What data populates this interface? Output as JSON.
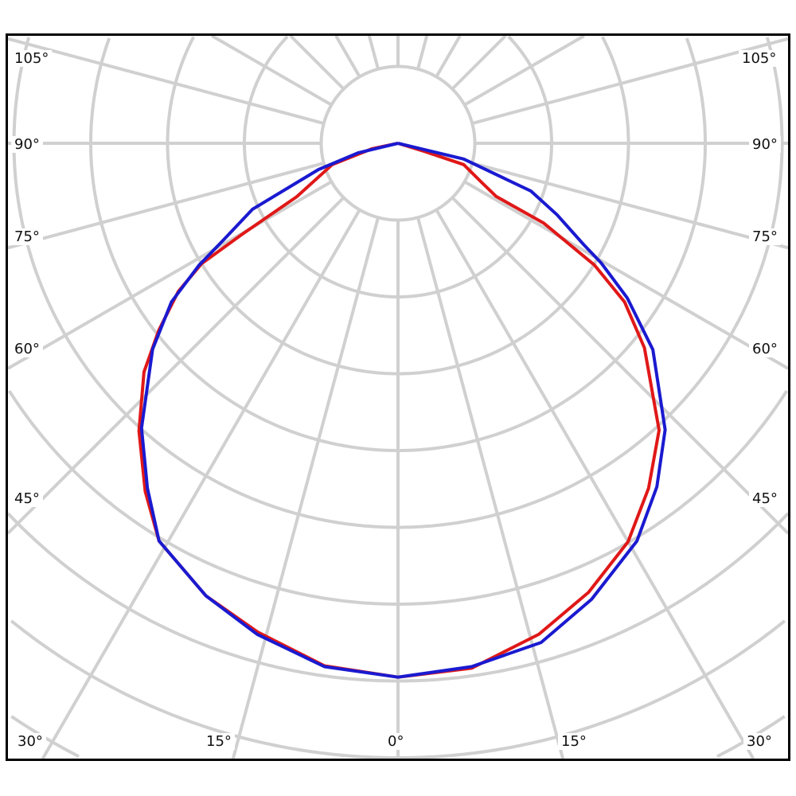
{
  "chart_data": {
    "type": "polar-line",
    "title": "",
    "angle_unit": "degrees",
    "angle_zero": "bottom",
    "angle_tick_labels_left": [
      "105°",
      "90°",
      "75°",
      "60°",
      "45°",
      "30°"
    ],
    "angle_tick_labels_bottom": [
      "30°",
      "15°",
      "0°",
      "15°",
      "30°"
    ],
    "angle_tick_labels_right": [
      "105°",
      "90°",
      "75°",
      "60°",
      "45°"
    ],
    "angle_grid_step": 15,
    "radial_grid_rings": 10,
    "radial_tick_labels": [],
    "grid": true,
    "grid_color": "#d0d0d0",
    "series": [
      {
        "color": "#e01818",
        "points": [
          [
            -90,
            0
          ],
          [
            -78,
            0.35
          ],
          [
            -72,
            0.9
          ],
          [
            -62.2,
            1.49
          ],
          [
            -59.7,
            2.36
          ],
          [
            -58.5,
            3.0
          ],
          [
            -56,
            3.45
          ],
          [
            -52,
            3.95
          ],
          [
            -48,
            4.45
          ],
          [
            -42,
            5.04
          ],
          [
            -36,
            5.6
          ],
          [
            -31,
            6.04
          ],
          [
            -23,
            6.4
          ],
          [
            -16,
            6.62
          ],
          [
            -8,
            6.87
          ],
          [
            0,
            6.95
          ],
          [
            8,
            6.9
          ],
          [
            16,
            6.65
          ],
          [
            23,
            6.35
          ],
          [
            30,
            5.99
          ],
          [
            36,
            5.55
          ],
          [
            42.3,
            5.05
          ],
          [
            50.3,
            4.17
          ],
          [
            55,
            3.6
          ],
          [
            58.2,
            3.01
          ],
          [
            61.3,
            2.16
          ],
          [
            61.6,
            1.45
          ],
          [
            65.5,
            1.17
          ],
          [
            72,
            0.9
          ],
          [
            73,
            0.36
          ],
          [
            90,
            0
          ]
        ]
      },
      {
        "color": "#1a1ad0",
        "points": [
          [
            -90,
            0
          ],
          [
            -76.5,
            0.53
          ],
          [
            -71.7,
            1.09
          ],
          [
            -65.6,
            2.08
          ],
          [
            -61,
            2.6
          ],
          [
            -58.5,
            3.04
          ],
          [
            -55,
            3.6
          ],
          [
            -50,
            4.17
          ],
          [
            -42,
            4.99
          ],
          [
            -36,
            5.55
          ],
          [
            -31,
            6.04
          ],
          [
            -23,
            6.4
          ],
          [
            -16,
            6.65
          ],
          [
            -8,
            6.88
          ],
          [
            0,
            6.95
          ],
          [
            8,
            6.88
          ],
          [
            16,
            6.76
          ],
          [
            23,
            6.45
          ],
          [
            31,
            6.04
          ],
          [
            37,
            5.6
          ],
          [
            43,
            5.1
          ],
          [
            51,
            4.27
          ],
          [
            56,
            3.6
          ],
          [
            59.5,
            3.07
          ],
          [
            61.4,
            2.75
          ],
          [
            65.8,
            2.27
          ],
          [
            70.2,
            1.84
          ],
          [
            76.5,
            0.88
          ],
          [
            90,
            0
          ]
        ]
      }
    ]
  }
}
